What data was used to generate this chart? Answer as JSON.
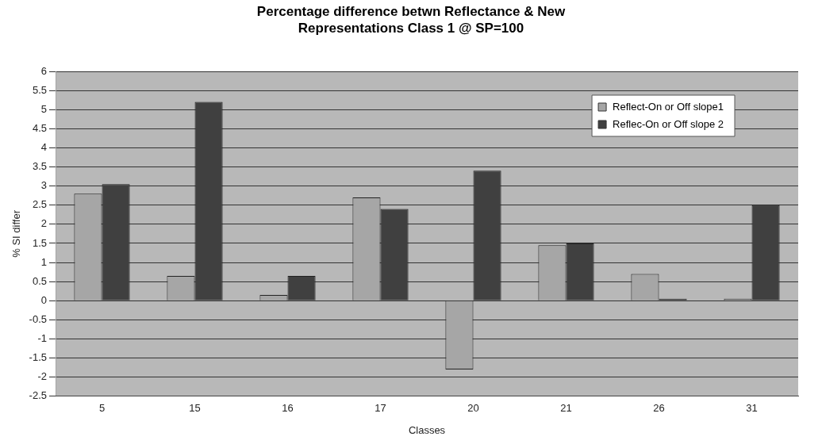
{
  "chart_data": {
    "type": "bar",
    "title": "Percentage difference betwn Reflectance & New Representations Class 1 @ SP=100",
    "xlabel": "Classes",
    "ylabel": "% SI differ",
    "categories": [
      "5",
      "15",
      "16",
      "17",
      "20",
      "21",
      "26",
      "31"
    ],
    "series": [
      {
        "name": "Reflect-On or Off slope1",
        "color": "#a6a6a6",
        "values": [
          2.8,
          0.65,
          0.15,
          2.7,
          -1.8,
          1.45,
          0.7,
          0.05
        ]
      },
      {
        "name": "Reflec-On or Off slope 2",
        "color": "#404040",
        "values": [
          3.05,
          5.2,
          0.65,
          2.4,
          3.4,
          1.5,
          0.05,
          2.5
        ]
      }
    ],
    "ylim": [
      -2.5,
      6
    ],
    "yticks": [
      -2.5,
      -2,
      -1.5,
      -1,
      -0.5,
      0,
      0.5,
      1,
      1.5,
      2,
      2.5,
      3,
      3.5,
      4,
      4.5,
      5,
      5.5,
      6
    ],
    "grid": "y",
    "legend": "top right"
  }
}
